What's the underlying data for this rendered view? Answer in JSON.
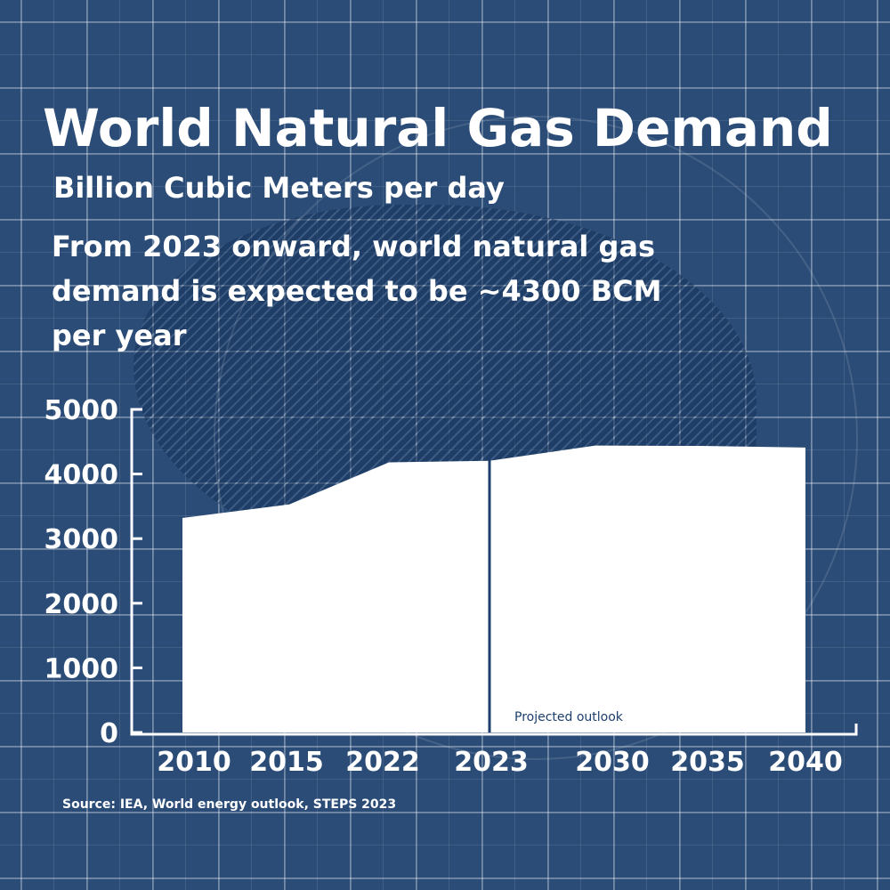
{
  "title": "World Natural Gas Demand",
  "subtitle": "Billion Cubic Meters per day",
  "note": "From 2023 onward, world natural gas demand is expected to be ~4300 BCM per year",
  "source": "Source: IEA, World energy outlook, STEPS 2023",
  "colors": {
    "background": "#2b4c77",
    "fill": "#ffffff",
    "divider": "#1e3f6b"
  },
  "chart_data": {
    "type": "area",
    "title": "World Natural Gas Demand",
    "ylabel": "Billion Cubic Meters",
    "categories": [
      "2010",
      "2015",
      "2022",
      "2023",
      "2030",
      "2035",
      "2040"
    ],
    "values": [
      3320,
      3530,
      4180,
      4205,
      4440,
      4435,
      4410
    ],
    "ylim": [
      0,
      5000
    ],
    "yticks": [
      "0",
      "1000",
      "2000",
      "3000",
      "4000",
      "5000"
    ],
    "annotation": "Projected outlook",
    "divider_at": "2023",
    "grid": false
  }
}
